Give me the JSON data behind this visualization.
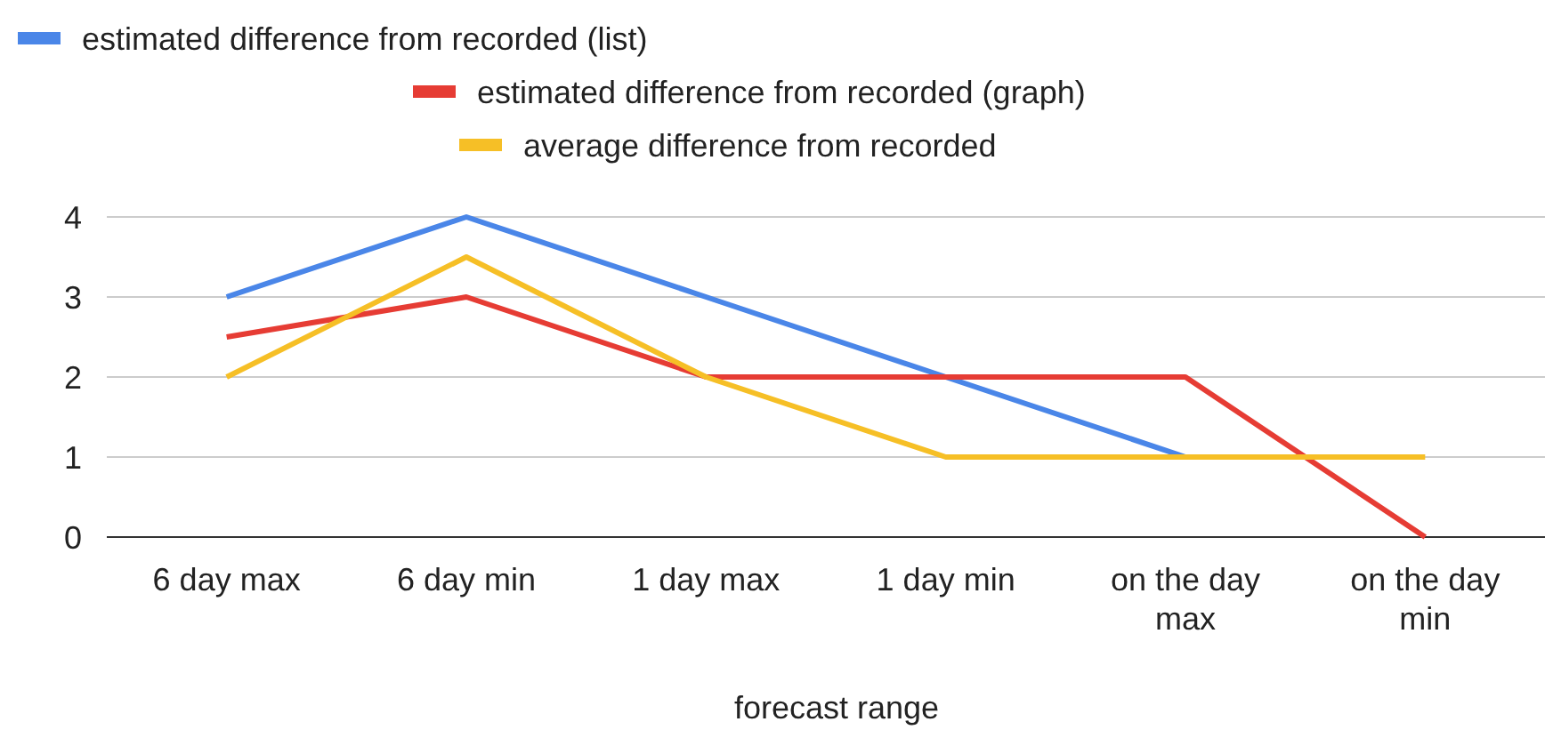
{
  "chart_data": {
    "type": "line",
    "xlabel": "forecast range",
    "categories": [
      "6 day max",
      "6 day min",
      "1 day max",
      "1 day min",
      "on the day max",
      "on the day min"
    ],
    "series": [
      {
        "name": "estimated difference from recorded (list)",
        "color": "#4a86e8",
        "values": [
          3,
          4,
          3,
          2,
          1,
          null
        ]
      },
      {
        "name": "estimated difference from recorded (graph)",
        "color": "#e63c34",
        "values": [
          2.5,
          3,
          2,
          2,
          2,
          0
        ]
      },
      {
        "name": "average difference from recorded",
        "color": "#f6bf26",
        "values": [
          2,
          3.5,
          2,
          1,
          1,
          1
        ]
      }
    ],
    "ylim": [
      0,
      4
    ],
    "yticks": [
      0,
      1,
      2,
      3,
      4
    ],
    "grid": "y",
    "legend": "top",
    "marker": "none",
    "line_style": "solid"
  }
}
